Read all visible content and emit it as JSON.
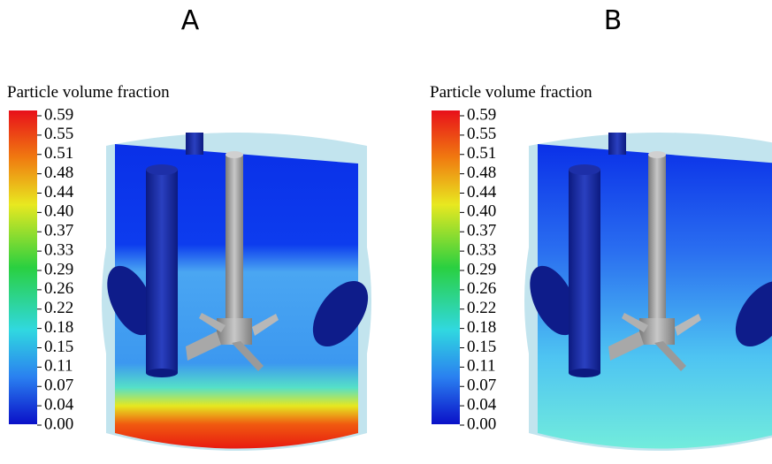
{
  "panels": [
    {
      "label": "A",
      "colorbar": {
        "title": "Particle volume fraction",
        "ticks": [
          "0.59",
          "0.55",
          "0.51",
          "0.48",
          "0.44",
          "0.40",
          "0.37",
          "0.33",
          "0.29",
          "0.26",
          "0.22",
          "0.18",
          "0.15",
          "0.11",
          "0.07",
          "0.04",
          "0.00"
        ]
      }
    },
    {
      "label": "B",
      "colorbar": {
        "title": "Particle volume fraction",
        "ticks": [
          "0.59",
          "0.55",
          "0.51",
          "0.48",
          "0.44",
          "0.40",
          "0.37",
          "0.33",
          "0.29",
          "0.26",
          "0.22",
          "0.18",
          "0.15",
          "0.11",
          "0.07",
          "0.04",
          "0.00"
        ]
      }
    }
  ]
}
